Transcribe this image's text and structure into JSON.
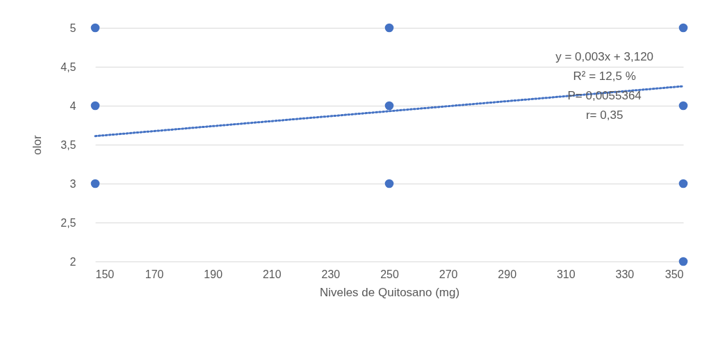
{
  "chart_data": {
    "type": "scatter",
    "xlabel": "Niveles de Quitosano (mg)",
    "ylabel": "olor",
    "series": [
      {
        "color": "#4472c4",
        "marker": "circle",
        "x": [
          150,
          150,
          150,
          250,
          250,
          250,
          350,
          350,
          350,
          350
        ],
        "values": [
          5,
          4,
          3,
          5,
          4,
          3,
          5,
          4,
          3,
          2
        ]
      },
      {
        "type": "line",
        "color": "#4472c4",
        "line_style": "dotted",
        "marker": "none",
        "x": [
          150,
          350
        ],
        "values": [
          3.61,
          4.25
        ]
      }
    ],
    "xlim": [
      150,
      350
    ],
    "xticks": [
      150,
      170,
      190,
      210,
      230,
      250,
      270,
      290,
      310,
      330,
      350
    ],
    "ylim": [
      2,
      5
    ],
    "yticks": [
      2,
      {
        "value": 2.5,
        "label": "2,5"
      },
      3,
      {
        "value": 3.5,
        "label": "3,5"
      },
      4,
      {
        "value": 4.5,
        "label": "4,5"
      },
      5
    ],
    "grid": "y",
    "annotations": [
      "y = 0,003x + 3,120",
      "R² = 12,5 %",
      "P= 0,0055364",
      "r= 0,35"
    ]
  }
}
